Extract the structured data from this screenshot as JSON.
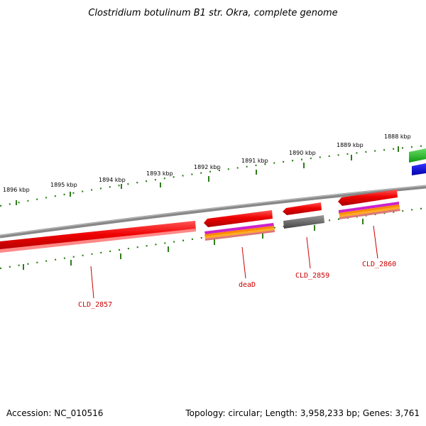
{
  "title": "Clostridium botulinum B1 str. Okra, complete genome",
  "footer": {
    "accession": "Accession: NC_010516",
    "summary": "Topology: circular; Length: 3,958,233 bp; Genes: 3,761"
  },
  "colors": {
    "backbone": "#888888",
    "tick": "#2e7d1a",
    "gene_forward": "#ee0000",
    "gene_reverse": "#ee0000",
    "gene_label": "#cc0000",
    "pseudo_gray": "#666666",
    "green_feature": "#33bb33",
    "blue_feature": "#0000ee"
  },
  "kbp_labels": [
    "1896 kbp",
    "1895 kbp",
    "1894 kbp",
    "1893 kbp",
    "1892 kbp",
    "1891 kbp",
    "1890 kbp",
    "1889 kbp",
    "1888 kbp"
  ],
  "genes": [
    {
      "label": "CLD_2857"
    },
    {
      "label": "deaD"
    },
    {
      "label": "CLD_2859"
    },
    {
      "label": "CLD_2860"
    }
  ]
}
